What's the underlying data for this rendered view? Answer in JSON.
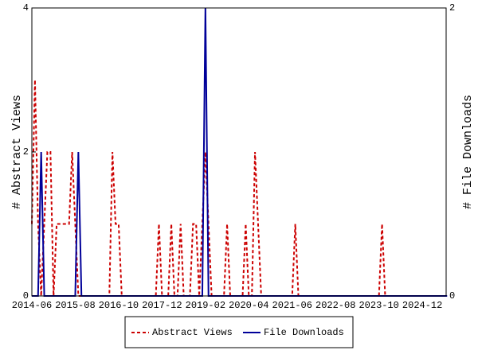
{
  "chart_data": {
    "type": "line",
    "categories": [
      "2014-06",
      null,
      null,
      null,
      null,
      null,
      null,
      null,
      null,
      null,
      null,
      null,
      null,
      null,
      "2015-08",
      null,
      null,
      null,
      null,
      null,
      null,
      null,
      null,
      null,
      null,
      null,
      null,
      null,
      "2016-10",
      null,
      null,
      null,
      null,
      null,
      null,
      null,
      null,
      null,
      null,
      null,
      null,
      null,
      "2017-12",
      null,
      null,
      null,
      null,
      null,
      null,
      null,
      null,
      null,
      null,
      null,
      null,
      null,
      "2019-02",
      null,
      null,
      null,
      null,
      null,
      null,
      null,
      null,
      null,
      null,
      null,
      null,
      null,
      "2020-04",
      null,
      null,
      null,
      null,
      null,
      null,
      null,
      null,
      null,
      null,
      null,
      null,
      null,
      "2021-06",
      null,
      null,
      null,
      null,
      null,
      null,
      null,
      null,
      null,
      null,
      null,
      null,
      null,
      "2022-08",
      null,
      null,
      null,
      null,
      null,
      null,
      null,
      null,
      null,
      null,
      null,
      null,
      null,
      "2023-10",
      null,
      null,
      null,
      null,
      null,
      null,
      null,
      null,
      null,
      null,
      null,
      null,
      null,
      "2024-12",
      null,
      null,
      null,
      null,
      null,
      null,
      null,
      null
    ],
    "ylabel": "# Abstract Views",
    "y2label": "# File Downloads",
    "ylim": [
      0,
      4
    ],
    "yticks": [
      0,
      2,
      4
    ],
    "y2lim": [
      0,
      2
    ],
    "y2ticks": [
      0,
      2
    ],
    "grid": false,
    "legend": "bottom",
    "series": [
      {
        "name": "Abstract Views",
        "color": "#cc0000",
        "line_style": "dashed",
        "values": [
          1,
          3,
          1,
          0,
          1,
          2,
          2,
          0,
          1,
          1,
          1,
          1,
          1,
          2,
          1,
          0,
          0,
          0,
          0,
          0,
          0,
          0,
          0,
          0,
          0,
          0,
          2,
          1,
          1,
          0,
          0,
          0,
          0,
          0,
          0,
          0,
          0,
          0,
          0,
          0,
          0,
          1,
          0,
          0,
          0,
          1,
          0,
          0,
          1,
          0,
          0,
          0,
          1,
          1,
          0,
          1,
          2,
          1,
          0,
          0,
          0,
          0,
          0,
          1,
          0,
          0,
          0,
          0,
          0,
          1,
          0,
          0,
          2,
          1,
          0,
          0,
          0,
          0,
          0,
          0,
          0,
          0,
          0,
          0,
          0,
          1,
          0,
          0,
          0,
          0,
          0,
          0,
          0,
          0,
          0,
          0,
          0,
          0,
          0,
          0,
          0,
          0,
          0,
          0,
          0,
          0,
          0,
          0,
          0,
          0,
          0,
          0,
          0,
          1,
          0,
          0,
          0,
          0,
          0,
          0,
          0,
          0,
          0,
          0,
          0,
          0,
          0,
          0,
          0,
          0,
          0,
          0,
          0,
          0,
          0
        ]
      },
      {
        "name": "File Downloads",
        "color": "#000099",
        "line_style": "solid",
        "axis": "y2",
        "values": [
          0,
          0,
          0,
          1,
          0,
          0,
          0,
          0,
          0,
          0,
          0,
          0,
          0,
          0,
          0,
          1,
          0,
          0,
          0,
          0,
          0,
          0,
          0,
          0,
          0,
          0,
          0,
          0,
          0,
          0,
          0,
          0,
          0,
          0,
          0,
          0,
          0,
          0,
          0,
          0,
          0,
          0,
          0,
          0,
          0,
          0,
          0,
          0,
          0,
          0,
          0,
          0,
          0,
          0,
          0,
          0,
          2,
          0,
          0,
          0,
          0,
          0,
          0,
          0,
          0,
          0,
          0,
          0,
          0,
          0,
          0,
          0,
          0,
          0,
          0,
          0,
          0,
          0,
          0,
          0,
          0,
          0,
          0,
          0,
          0,
          0,
          0,
          0,
          0,
          0,
          0,
          0,
          0,
          0,
          0,
          0,
          0,
          0,
          0,
          0,
          0,
          0,
          0,
          0,
          0,
          0,
          0,
          0,
          0,
          0,
          0,
          0,
          0,
          0,
          0,
          0,
          0,
          0,
          0,
          0,
          0,
          0,
          0,
          0,
          0,
          0,
          0,
          0,
          0,
          0,
          0,
          0,
          0,
          0,
          0
        ]
      }
    ]
  }
}
